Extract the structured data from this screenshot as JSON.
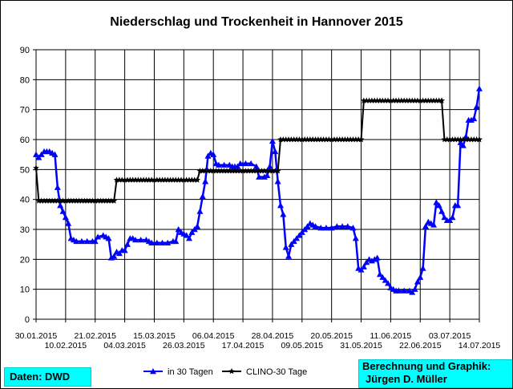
{
  "chart_data": {
    "type": "line",
    "title": "Niederschlag und Trockenheit in Hannover 2015",
    "ylim": [
      0,
      90
    ],
    "yticks": [
      0,
      10,
      20,
      30,
      40,
      50,
      60,
      70,
      80,
      90
    ],
    "xlim": [
      "30.01.2015",
      "14.07.2015"
    ],
    "xticks_top": [
      "30.01.2015",
      "21.02.2015",
      "15.03.2015",
      "06.04.2015",
      "28.04.2015",
      "20.05.2015",
      "11.06.2015",
      "03.07.2015"
    ],
    "xticks_bottom": [
      "10.02.2015",
      "04.03.2015",
      "26.03.2015",
      "17.04.2015",
      "09.05.2015",
      "31.05.2015",
      "22.06.2015",
      "14.07.2015"
    ],
    "grid": true,
    "legend": "bottom",
    "series": [
      {
        "name": "in 30 Tagen",
        "color": "#0000ff",
        "marker": "triangle",
        "points": [
          [
            "30.01.2015",
            55
          ],
          [
            "31.01.2015",
            54
          ],
          [
            "01.02.2015",
            55
          ],
          [
            "02.02.2015",
            56
          ],
          [
            "03.02.2015",
            56
          ],
          [
            "04.02.2015",
            56
          ],
          [
            "05.02.2015",
            55.5
          ],
          [
            "06.02.2015",
            55
          ],
          [
            "07.02.2015",
            44
          ],
          [
            "08.02.2015",
            38
          ],
          [
            "09.02.2015",
            36
          ],
          [
            "10.02.2015",
            34
          ],
          [
            "11.02.2015",
            32
          ],
          [
            "12.02.2015",
            27
          ],
          [
            "13.02.2015",
            26.5
          ],
          [
            "14.02.2015",
            26
          ],
          [
            "16.02.2015",
            26
          ],
          [
            "18.02.2015",
            26
          ],
          [
            "20.02.2015",
            26
          ],
          [
            "21.02.2015",
            26
          ],
          [
            "22.02.2015",
            27.5
          ],
          [
            "24.02.2015",
            28
          ],
          [
            "25.02.2015",
            27.5
          ],
          [
            "26.02.2015",
            27
          ],
          [
            "27.02.2015",
            20.5
          ],
          [
            "28.02.2015",
            21
          ],
          [
            "01.03.2015",
            22.5
          ],
          [
            "02.03.2015",
            22
          ],
          [
            "03.03.2015",
            23
          ],
          [
            "04.03.2015",
            23
          ],
          [
            "05.03.2015",
            25
          ],
          [
            "06.03.2015",
            27
          ],
          [
            "07.03.2015",
            27
          ],
          [
            "08.03.2015",
            26.5
          ],
          [
            "10.03.2015",
            26.5
          ],
          [
            "12.03.2015",
            26.5
          ],
          [
            "13.03.2015",
            26
          ],
          [
            "14.03.2015",
            25.5
          ],
          [
            "16.03.2015",
            25.5
          ],
          [
            "18.03.2015",
            25.5
          ],
          [
            "20.03.2015",
            25.5
          ],
          [
            "22.03.2015",
            26
          ],
          [
            "23.03.2015",
            26
          ],
          [
            "24.03.2015",
            30
          ],
          [
            "25.03.2015",
            29
          ],
          [
            "26.03.2015",
            28.5
          ],
          [
            "27.03.2015",
            28
          ],
          [
            "28.03.2015",
            27
          ],
          [
            "29.03.2015",
            29
          ],
          [
            "30.03.2015",
            30
          ],
          [
            "31.03.2015",
            31
          ],
          [
            "01.04.2015",
            36
          ],
          [
            "02.04.2015",
            41
          ],
          [
            "03.04.2015",
            46
          ],
          [
            "04.04.2015",
            54.5
          ],
          [
            "05.04.2015",
            55.5
          ],
          [
            "06.04.2015",
            55
          ],
          [
            "07.04.2015",
            52
          ],
          [
            "08.04.2015",
            51.5
          ],
          [
            "10.04.2015",
            51.5
          ],
          [
            "12.04.2015",
            51.5
          ],
          [
            "13.04.2015",
            51
          ],
          [
            "14.04.2015",
            51
          ],
          [
            "15.04.2015",
            51
          ],
          [
            "16.04.2015",
            52
          ],
          [
            "18.04.2015",
            52
          ],
          [
            "20.04.2015",
            52
          ],
          [
            "22.04.2015",
            51
          ],
          [
            "23.04.2015",
            47.5
          ],
          [
            "25.04.2015",
            47.5
          ],
          [
            "26.04.2015",
            48
          ],
          [
            "27.04.2015",
            51
          ],
          [
            "28.04.2015",
            59.5
          ],
          [
            "29.04.2015",
            56
          ],
          [
            "30.04.2015",
            46
          ],
          [
            "01.05.2015",
            38
          ],
          [
            "02.05.2015",
            35
          ],
          [
            "03.05.2015",
            24
          ],
          [
            "04.05.2015",
            21
          ],
          [
            "05.05.2015",
            25
          ],
          [
            "06.05.2015",
            26
          ],
          [
            "07.05.2015",
            27
          ],
          [
            "08.05.2015",
            28
          ],
          [
            "09.05.2015",
            29
          ],
          [
            "10.05.2015",
            30
          ],
          [
            "11.05.2015",
            31
          ],
          [
            "12.05.2015",
            32
          ],
          [
            "13.05.2015",
            31.5
          ],
          [
            "14.05.2015",
            31
          ],
          [
            "16.05.2015",
            30.5
          ],
          [
            "18.05.2015",
            30.5
          ],
          [
            "20.05.2015",
            30.5
          ],
          [
            "22.05.2015",
            31
          ],
          [
            "24.05.2015",
            31
          ],
          [
            "26.05.2015",
            31
          ],
          [
            "28.05.2015",
            30.5
          ],
          [
            "29.05.2015",
            27
          ],
          [
            "30.05.2015",
            17
          ],
          [
            "31.05.2015",
            16.5
          ],
          [
            "01.06.2015",
            17.5
          ],
          [
            "02.06.2015",
            19
          ],
          [
            "03.06.2015",
            20
          ],
          [
            "04.06.2015",
            19.5
          ],
          [
            "05.06.2015",
            20
          ],
          [
            "06.06.2015",
            20.5
          ],
          [
            "07.06.2015",
            15
          ],
          [
            "08.06.2015",
            14
          ],
          [
            "09.06.2015",
            13
          ],
          [
            "10.06.2015",
            12
          ],
          [
            "11.06.2015",
            10.5
          ],
          [
            "12.06.2015",
            10
          ],
          [
            "13.06.2015",
            9.5
          ],
          [
            "14.06.2015",
            9.5
          ],
          [
            "16.06.2015",
            9.5
          ],
          [
            "18.06.2015",
            9.5
          ],
          [
            "19.06.2015",
            9
          ],
          [
            "20.06.2015",
            10
          ],
          [
            "21.06.2015",
            12.5
          ],
          [
            "22.06.2015",
            14
          ],
          [
            "23.06.2015",
            17
          ],
          [
            "24.06.2015",
            31
          ],
          [
            "25.06.2015",
            32.5
          ],
          [
            "26.06.2015",
            32
          ],
          [
            "27.06.2015",
            31.5
          ],
          [
            "28.06.2015",
            39
          ],
          [
            "29.06.2015",
            38
          ],
          [
            "30.06.2015",
            36
          ],
          [
            "01.07.2015",
            34
          ],
          [
            "02.07.2015",
            33
          ],
          [
            "03.07.2015",
            33
          ],
          [
            "04.07.2015",
            34
          ],
          [
            "05.07.2015",
            38
          ],
          [
            "06.07.2015",
            38
          ],
          [
            "07.07.2015",
            59
          ],
          [
            "08.07.2015",
            58
          ],
          [
            "09.07.2015",
            61
          ],
          [
            "10.07.2015",
            66.5
          ],
          [
            "11.07.2015",
            66.5
          ],
          [
            "12.07.2015",
            67
          ],
          [
            "13.07.2015",
            71
          ],
          [
            "14.07.2015",
            77
          ]
        ]
      },
      {
        "name": "CLINO-30 Tage",
        "color": "#000000",
        "marker": "star",
        "points": [
          [
            "30.01.2015",
            50.5
          ],
          [
            "31.01.2015",
            39.5
          ],
          [
            "28.02.2015",
            39.5
          ],
          [
            "01.03.2015",
            46.5
          ],
          [
            "31.03.2015",
            46.5
          ],
          [
            "01.04.2015",
            49.5
          ],
          [
            "30.04.2015",
            49.5
          ],
          [
            "01.05.2015",
            60
          ],
          [
            "31.05.2015",
            60
          ],
          [
            "01.06.2015",
            73
          ],
          [
            "30.06.2015",
            73
          ],
          [
            "01.07.2015",
            60
          ],
          [
            "14.07.2015",
            60
          ]
        ]
      }
    ]
  },
  "source_label": "Daten: DWD",
  "credit_line1": "Berechnung und Graphik:",
  "credit_line2": "Jürgen D. Müller"
}
